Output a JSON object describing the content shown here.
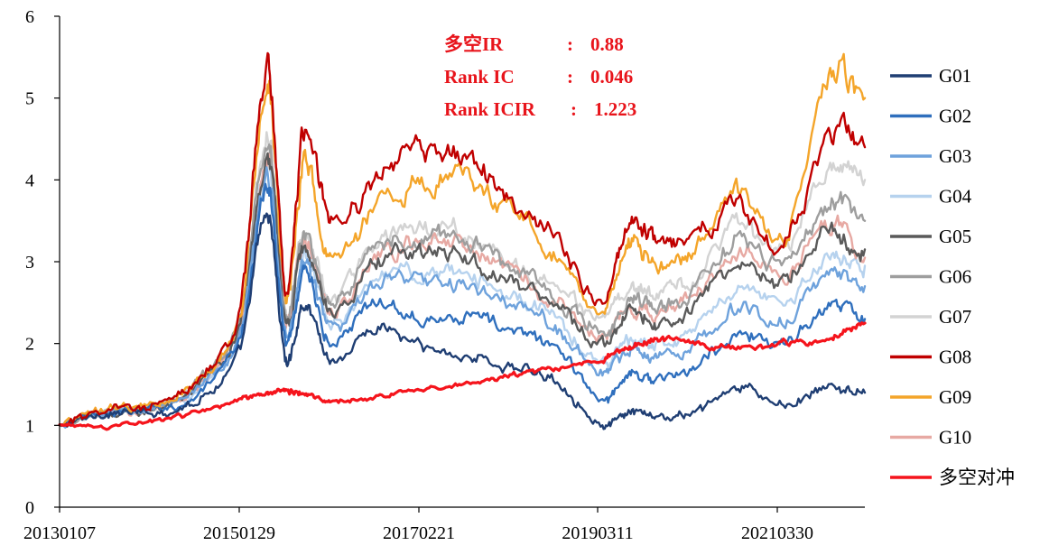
{
  "chart_data": {
    "type": "line",
    "title": "",
    "xlabel": "",
    "ylabel": "",
    "ylim": [
      0,
      6
    ],
    "yticks": [
      0,
      1,
      2,
      3,
      4,
      5,
      6
    ],
    "x_tick_labels": [
      "20130107",
      "20150129",
      "20170221",
      "20190311",
      "20210330"
    ],
    "grid": false,
    "legend_position": "right",
    "annotation": {
      "color": "#e8141b",
      "lines": [
        {
          "label": "多空IR",
          "sep": ":",
          "value": "0.88"
        },
        {
          "label": "Rank IC",
          "sep": ":",
          "value": "0.046"
        },
        {
          "label": "Rank ICIR",
          "sep": ":",
          "value": "1.223"
        }
      ]
    },
    "x": [
      2013.0,
      2013.5,
      2014.0,
      2014.5,
      2015.0,
      2015.3,
      2015.5,
      2015.7,
      2016.0,
      2016.5,
      2017.0,
      2017.5,
      2018.0,
      2018.5,
      2019.0,
      2019.3,
      2019.6,
      2020.0,
      2020.5,
      2021.0,
      2021.5,
      2021.9
    ],
    "series": [
      {
        "name": "G01",
        "color": "#1f3e73",
        "values": [
          1.0,
          1.15,
          1.15,
          1.3,
          1.9,
          3.6,
          1.8,
          2.5,
          1.8,
          2.2,
          1.95,
          1.85,
          1.7,
          1.55,
          1.0,
          1.15,
          1.1,
          1.15,
          1.45,
          1.25,
          1.45,
          1.4
        ]
      },
      {
        "name": "G02",
        "color": "#2f6fbd",
        "values": [
          1.0,
          1.15,
          1.2,
          1.35,
          2.05,
          3.9,
          2.0,
          2.9,
          2.0,
          2.5,
          2.35,
          2.35,
          2.15,
          1.95,
          1.3,
          1.65,
          1.55,
          1.7,
          2.1,
          2.0,
          2.45,
          2.3
        ]
      },
      {
        "name": "G03",
        "color": "#6ea2dc",
        "values": [
          1.0,
          1.15,
          1.2,
          1.4,
          2.1,
          4.1,
          2.1,
          3.0,
          2.2,
          2.7,
          2.75,
          2.7,
          2.45,
          2.2,
          1.65,
          1.95,
          1.85,
          2.0,
          2.45,
          2.25,
          2.85,
          2.7
        ]
      },
      {
        "name": "G04",
        "color": "#b6d2ee",
        "values": [
          1.0,
          1.15,
          1.2,
          1.4,
          2.15,
          4.2,
          2.15,
          3.05,
          2.3,
          2.8,
          2.85,
          2.85,
          2.55,
          2.3,
          1.75,
          2.05,
          1.95,
          2.15,
          2.65,
          2.5,
          3.05,
          2.95
        ]
      },
      {
        "name": "G05",
        "color": "#5a5a5a",
        "values": [
          1.0,
          1.15,
          1.2,
          1.45,
          2.2,
          4.3,
          2.2,
          3.2,
          2.4,
          3.0,
          3.1,
          3.05,
          2.75,
          2.45,
          2.0,
          2.35,
          2.25,
          2.45,
          3.0,
          2.75,
          3.35,
          3.15
        ]
      },
      {
        "name": "G06",
        "color": "#9e9e9e",
        "values": [
          1.0,
          1.15,
          1.2,
          1.5,
          2.25,
          4.5,
          2.3,
          3.3,
          2.5,
          3.15,
          3.3,
          3.25,
          2.9,
          2.6,
          2.15,
          2.55,
          2.45,
          2.65,
          3.25,
          3.0,
          3.7,
          3.5
        ]
      },
      {
        "name": "G07",
        "color": "#d3d3d3",
        "values": [
          1.0,
          1.15,
          1.2,
          1.5,
          2.25,
          4.6,
          2.35,
          3.35,
          2.55,
          3.2,
          3.4,
          3.35,
          3.0,
          2.7,
          2.3,
          2.7,
          2.6,
          2.8,
          3.45,
          3.15,
          4.1,
          4.0
        ]
      },
      {
        "name": "G08",
        "color": "#c00000",
        "values": [
          1.0,
          1.2,
          1.25,
          1.55,
          2.4,
          5.4,
          2.6,
          4.6,
          3.5,
          4.0,
          4.45,
          4.2,
          3.8,
          3.3,
          2.55,
          3.5,
          3.2,
          3.3,
          3.75,
          3.2,
          4.5,
          4.4
        ]
      },
      {
        "name": "G09",
        "color": "#f4a52a",
        "values": [
          1.0,
          1.2,
          1.25,
          1.55,
          2.35,
          5.2,
          2.55,
          4.2,
          3.0,
          3.7,
          4.0,
          3.95,
          3.6,
          3.1,
          2.35,
          3.2,
          2.95,
          3.15,
          3.85,
          3.3,
          5.2,
          5.0
        ]
      },
      {
        "name": "G10",
        "color": "#e7a9a3",
        "values": [
          1.0,
          1.15,
          1.2,
          1.45,
          2.2,
          4.4,
          2.25,
          3.25,
          2.45,
          3.05,
          3.25,
          3.2,
          2.85,
          2.5,
          2.05,
          2.45,
          2.35,
          2.55,
          3.15,
          2.8,
          3.45,
          3.05
        ]
      },
      {
        "name": "多空对冲",
        "color": "#f5141c",
        "values": [
          1.0,
          0.98,
          1.05,
          1.15,
          1.3,
          1.4,
          1.42,
          1.38,
          1.3,
          1.35,
          1.45,
          1.5,
          1.6,
          1.7,
          1.8,
          1.95,
          2.05,
          2.0,
          1.95,
          2.0,
          2.05,
          2.25
        ]
      }
    ]
  }
}
